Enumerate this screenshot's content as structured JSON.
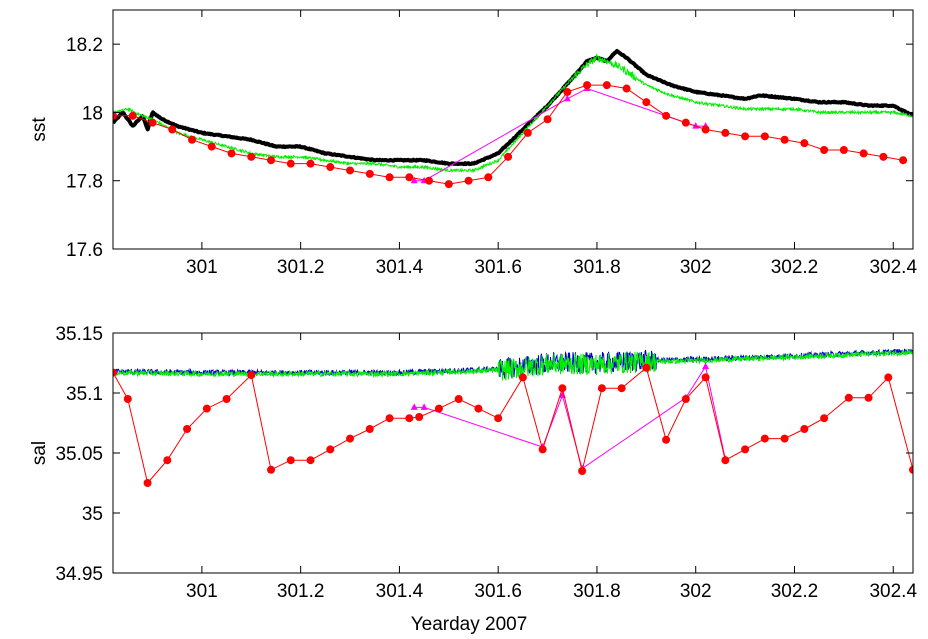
{
  "figure": {
    "background": "#ffffff",
    "xlabel": "Yearday 2007"
  },
  "chart_data": [
    {
      "type": "line",
      "title": "",
      "xlabel": "",
      "ylabel": "sst",
      "xlim": [
        300.82,
        302.44
      ],
      "ylim": [
        17.6,
        18.3
      ],
      "xticks": [
        301,
        301.2,
        301.4,
        301.6,
        301.8,
        302,
        302.2,
        302.4
      ],
      "xtick_labels": [
        "301",
        "301.2",
        "301.4",
        "301.6",
        "301.8",
        "302",
        "302.2",
        "302.4"
      ],
      "yticks": [
        17.6,
        17.8,
        18,
        18.2
      ],
      "ytick_labels": [
        "17.6",
        "17.8",
        "18",
        "18.2"
      ],
      "grid": false,
      "series": [
        {
          "color": "#000000",
          "style": "line-thick",
          "x": [
            300.82,
            300.84,
            300.86,
            300.88,
            300.89,
            300.9,
            300.92,
            300.95,
            301.0,
            301.05,
            301.1,
            301.15,
            301.2,
            301.25,
            301.3,
            301.35,
            301.4,
            301.45,
            301.5,
            301.55,
            301.6,
            301.65,
            301.7,
            301.75,
            301.78,
            301.8,
            301.82,
            301.84,
            301.86,
            301.9,
            301.95,
            302.0,
            302.05,
            302.1,
            302.13,
            302.2,
            302.25,
            302.3,
            302.35,
            302.4,
            302.44
          ],
          "y": [
            17.97,
            18.0,
            17.96,
            17.99,
            17.95,
            18.0,
            17.98,
            17.96,
            17.94,
            17.93,
            17.92,
            17.9,
            17.9,
            17.88,
            17.87,
            17.86,
            17.86,
            17.86,
            17.85,
            17.85,
            17.88,
            17.95,
            18.02,
            18.1,
            18.15,
            18.16,
            18.15,
            18.18,
            18.16,
            18.11,
            18.08,
            18.06,
            18.05,
            18.04,
            18.05,
            18.04,
            18.03,
            18.03,
            18.02,
            18.02,
            17.99
          ]
        },
        {
          "color": "#00ee00",
          "style": "line-noisy",
          "x": [
            300.82,
            300.85,
            300.88,
            300.9,
            300.95,
            301.0,
            301.05,
            301.1,
            301.15,
            301.2,
            301.25,
            301.3,
            301.35,
            301.4,
            301.45,
            301.5,
            301.55,
            301.6,
            301.65,
            301.7,
            301.75,
            301.78,
            301.8,
            301.82,
            301.85,
            301.9,
            301.95,
            302.0,
            302.05,
            302.1,
            302.15,
            302.2,
            302.25,
            302.3,
            302.35,
            302.4,
            302.44
          ],
          "y": [
            18.0,
            18.01,
            17.99,
            17.98,
            17.94,
            17.92,
            17.9,
            17.88,
            17.87,
            17.87,
            17.86,
            17.85,
            17.85,
            17.84,
            17.84,
            17.83,
            17.83,
            17.86,
            17.94,
            18.02,
            18.1,
            18.14,
            18.16,
            18.15,
            18.13,
            18.08,
            18.05,
            18.03,
            18.02,
            18.01,
            18.01,
            18.01,
            18.0,
            18.0,
            18.0,
            18.0,
            17.99
          ]
        },
        {
          "color": "#ff00ff",
          "style": "line-triangles",
          "x": [
            301.43,
            301.45,
            301.74,
            301.78,
            302.0,
            302.02
          ],
          "y": [
            17.8,
            17.8,
            18.04,
            18.07,
            17.96,
            17.96
          ]
        },
        {
          "color": "#ff0000",
          "style": "line-dots",
          "x": [
            300.82,
            300.86,
            300.9,
            300.94,
            300.98,
            301.02,
            301.06,
            301.1,
            301.14,
            301.18,
            301.22,
            301.26,
            301.3,
            301.34,
            301.38,
            301.42,
            301.46,
            301.5,
            301.54,
            301.58,
            301.62,
            301.66,
            301.7,
            301.74,
            301.78,
            301.82,
            301.86,
            301.9,
            301.94,
            301.98,
            302.02,
            302.06,
            302.1,
            302.14,
            302.18,
            302.22,
            302.26,
            302.3,
            302.34,
            302.38,
            302.42
          ],
          "y": [
            17.99,
            17.99,
            17.97,
            17.95,
            17.92,
            17.9,
            17.88,
            17.87,
            17.86,
            17.85,
            17.85,
            17.84,
            17.83,
            17.82,
            17.81,
            17.81,
            17.8,
            17.79,
            17.8,
            17.81,
            17.87,
            17.94,
            17.98,
            18.06,
            18.08,
            18.08,
            18.07,
            18.03,
            17.99,
            17.97,
            17.95,
            17.94,
            17.93,
            17.93,
            17.92,
            17.91,
            17.89,
            17.89,
            17.88,
            17.87,
            17.86
          ]
        }
      ]
    },
    {
      "type": "line",
      "title": "",
      "xlabel": "Yearday 2007",
      "ylabel": "sal",
      "xlim": [
        300.82,
        302.44
      ],
      "ylim": [
        34.95,
        35.15
      ],
      "xticks": [
        301,
        301.2,
        301.4,
        301.6,
        301.8,
        302,
        302.2,
        302.4
      ],
      "xtick_labels": [
        "301",
        "301.2",
        "301.4",
        "301.6",
        "301.8",
        "302",
        "302.2",
        "302.4"
      ],
      "yticks": [
        34.95,
        35,
        35.05,
        35.1,
        35.15
      ],
      "ytick_labels": [
        "34.95",
        "35",
        "35.05",
        "35.1",
        "35.15"
      ],
      "grid": false,
      "series": [
        {
          "color": "#0000cc",
          "style": "line-noisy",
          "x": [
            300.82,
            301.0,
            301.2,
            301.4,
            301.6,
            301.65,
            301.7,
            301.75,
            301.8,
            301.85,
            301.9,
            302.0,
            302.2,
            302.44
          ],
          "y": [
            35.118,
            35.117,
            35.117,
            35.117,
            35.12,
            35.122,
            35.125,
            35.125,
            35.125,
            35.126,
            35.127,
            35.128,
            35.131,
            35.135
          ]
        },
        {
          "color": "#00ee00",
          "style": "line-noisy",
          "x": [
            300.82,
            301.0,
            301.2,
            301.4,
            301.6,
            301.65,
            301.7,
            301.75,
            301.8,
            301.85,
            301.9,
            302.0,
            302.2,
            302.44
          ],
          "y": [
            35.117,
            35.116,
            35.116,
            35.116,
            35.119,
            35.121,
            35.124,
            35.124,
            35.124,
            35.125,
            35.126,
            35.127,
            35.13,
            35.134
          ]
        },
        {
          "color": "#ff00ff",
          "style": "line-triangles",
          "x": [
            301.43,
            301.45,
            301.69,
            301.73,
            301.77,
            301.98,
            302.02,
            302.06
          ],
          "y": [
            35.088,
            35.088,
            35.055,
            35.098,
            35.037,
            35.096,
            35.122,
            35.045
          ]
        },
        {
          "color": "#ff0000",
          "style": "line-dots",
          "x": [
            300.82,
            300.85,
            300.89,
            300.93,
            300.97,
            301.01,
            301.05,
            301.1,
            301.14,
            301.18,
            301.22,
            301.26,
            301.3,
            301.34,
            301.38,
            301.42,
            301.44,
            301.48,
            301.52,
            301.56,
            301.6,
            301.65,
            301.69,
            301.73,
            301.77,
            301.81,
            301.85,
            301.9,
            301.94,
            301.98,
            302.02,
            302.06,
            302.1,
            302.14,
            302.18,
            302.22,
            302.26,
            302.31,
            302.35,
            302.39,
            302.44
          ],
          "y": [
            35.117,
            35.095,
            35.025,
            35.044,
            35.07,
            35.087,
            35.095,
            35.115,
            35.036,
            35.044,
            35.044,
            35.053,
            35.062,
            35.07,
            35.079,
            35.079,
            35.08,
            35.087,
            35.095,
            35.087,
            35.079,
            35.113,
            35.053,
            35.104,
            35.035,
            35.104,
            35.104,
            35.121,
            35.061,
            35.095,
            35.113,
            35.044,
            35.053,
            35.062,
            35.062,
            35.07,
            35.079,
            35.096,
            35.096,
            35.113,
            35.036
          ]
        }
      ]
    }
  ]
}
